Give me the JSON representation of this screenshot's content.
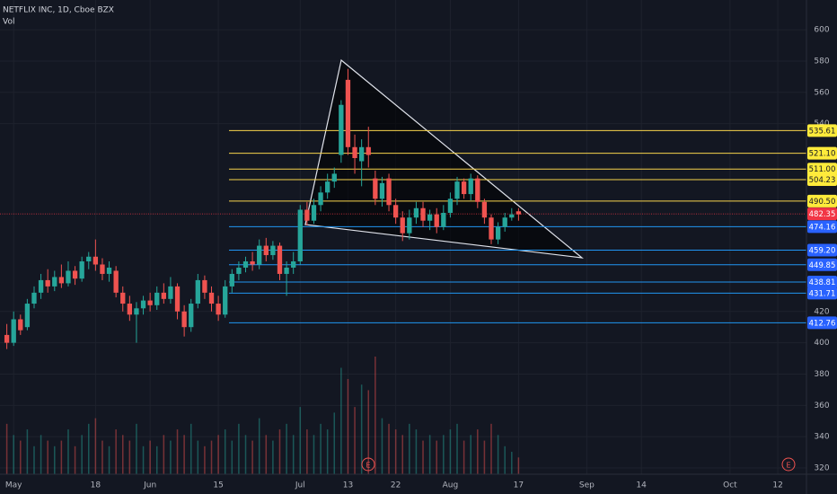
{
  "chart_data": {
    "type": "candlestick",
    "title": "NETFLIX INC, 1D, Cboe BZX",
    "subtitle": "Vol",
    "up_color": "#26a69a",
    "down_color": "#ef5350",
    "grid": true,
    "xlim": [
      -1,
      117.2
    ],
    "ylim": [
      316,
      619
    ],
    "yticks": [
      600,
      580,
      560,
      540,
      420,
      400,
      380,
      360,
      340,
      320
    ],
    "xticks": [
      {
        "value": 1,
        "label": "May"
      },
      {
        "value": 13,
        "label": "18"
      },
      {
        "value": 21,
        "label": "Jun"
      },
      {
        "value": 31,
        "label": "15"
      },
      {
        "value": 43,
        "label": "Jul"
      },
      {
        "value": 50,
        "label": "13"
      },
      {
        "value": 57,
        "label": "22"
      },
      {
        "value": 65,
        "label": "Aug"
      },
      {
        "value": 75,
        "label": "17"
      },
      {
        "value": 85,
        "label": "Sep"
      },
      {
        "value": 93,
        "label": "14"
      },
      {
        "value": 106,
        "label": "Oct"
      },
      {
        "value": 113,
        "label": "12"
      }
    ],
    "candles": [
      [
        405,
        412,
        396,
        400
      ],
      [
        400,
        420,
        398,
        415
      ],
      [
        415,
        418,
        405,
        408
      ],
      [
        410,
        428,
        408,
        425
      ],
      [
        425,
        436,
        422,
        432
      ],
      [
        432,
        444,
        428,
        440
      ],
      [
        440,
        447,
        432,
        436
      ],
      [
        436,
        446,
        433,
        442
      ],
      [
        442,
        450,
        435,
        438
      ],
      [
        438,
        452,
        436,
        446
      ],
      [
        446,
        449,
        437,
        441
      ],
      [
        441,
        455,
        439,
        452
      ],
      [
        452,
        458,
        447,
        455
      ],
      [
        455,
        466,
        446,
        450
      ],
      [
        450,
        454,
        440,
        444
      ],
      [
        444,
        452,
        439,
        448
      ],
      [
        446,
        449,
        429,
        432
      ],
      [
        432,
        436,
        420,
        425
      ],
      [
        425,
        430,
        414,
        418
      ],
      [
        418,
        426,
        400,
        422
      ],
      [
        422,
        430,
        418,
        427
      ],
      [
        427,
        432,
        420,
        424
      ],
      [
        424,
        436,
        421,
        432
      ],
      [
        432,
        438,
        425,
        428
      ],
      [
        428,
        442,
        425,
        436
      ],
      [
        436,
        438,
        415,
        420
      ],
      [
        420,
        424,
        404,
        410
      ],
      [
        410,
        428,
        407,
        425
      ],
      [
        425,
        444,
        422,
        440
      ],
      [
        440,
        443,
        428,
        432
      ],
      [
        432,
        436,
        420,
        425
      ],
      [
        425,
        430,
        414,
        418
      ],
      [
        418,
        440,
        416,
        436
      ],
      [
        436,
        447,
        432,
        444
      ],
      [
        444,
        452,
        440,
        448
      ],
      [
        448,
        455,
        445,
        452
      ],
      [
        452,
        458,
        446,
        450
      ],
      [
        450,
        466,
        447,
        462
      ],
      [
        462,
        467,
        452,
        456
      ],
      [
        456,
        465,
        453,
        462
      ],
      [
        462,
        464,
        440,
        444
      ],
      [
        444,
        452,
        430,
        448
      ],
      [
        448,
        458,
        444,
        452
      ],
      [
        452,
        488,
        450,
        485
      ],
      [
        485,
        490,
        475,
        478
      ],
      [
        478,
        492,
        476,
        488
      ],
      [
        488,
        500,
        484,
        496
      ],
      [
        496,
        508,
        492,
        503
      ],
      [
        503,
        512,
        499,
        508
      ],
      [
        520,
        555,
        515,
        552
      ],
      [
        568,
        575,
        520,
        525
      ],
      [
        525,
        533,
        508,
        518
      ],
      [
        516,
        530,
        500,
        525
      ],
      [
        525,
        538,
        512,
        520
      ],
      [
        505,
        510,
        488,
        492
      ],
      [
        492,
        506,
        487,
        502
      ],
      [
        505,
        508,
        484,
        488
      ],
      [
        488,
        492,
        476,
        480
      ],
      [
        480,
        484,
        465,
        470
      ],
      [
        470,
        485,
        466,
        480
      ],
      [
        480,
        490,
        476,
        486
      ],
      [
        486,
        490,
        474,
        478
      ],
      [
        478,
        485,
        472,
        482
      ],
      [
        482,
        486,
        470,
        474
      ],
      [
        474,
        488,
        472,
        483
      ],
      [
        483,
        496,
        480,
        492
      ],
      [
        492,
        506,
        488,
        503
      ],
      [
        503,
        505,
        492,
        495
      ],
      [
        495,
        508,
        491,
        505
      ],
      [
        505,
        507,
        486,
        490
      ],
      [
        490,
        492,
        476,
        480
      ],
      [
        480,
        482,
        463,
        466
      ],
      [
        466,
        477,
        463,
        474
      ],
      [
        474,
        483,
        471,
        480
      ],
      [
        480,
        486,
        478,
        482
      ],
      [
        484,
        486,
        478,
        482
      ]
    ],
    "volume": [
      9,
      7,
      6,
      8,
      5,
      7,
      6,
      5,
      6,
      8,
      5,
      7,
      9,
      10,
      6,
      5,
      8,
      7,
      6,
      9,
      5,
      6,
      5,
      7,
      6,
      8,
      7,
      9,
      6,
      5,
      6,
      7,
      8,
      6,
      9,
      7,
      6,
      10,
      7,
      6,
      8,
      9,
      7,
      12,
      8,
      7,
      9,
      8,
      11,
      19,
      17,
      12,
      16,
      15,
      21,
      10,
      9,
      8,
      7,
      9,
      8,
      6,
      7,
      6,
      7,
      8,
      9,
      6,
      7,
      8,
      6,
      9,
      7,
      5,
      4,
      3
    ],
    "last_price": {
      "price": 482.35,
      "color": "#f23645"
    },
    "levels": [
      {
        "price": 535.61,
        "color": "#f7d44c"
      },
      {
        "price": 521.1,
        "price_label": "521.10",
        "color": "#f7d44c"
      },
      {
        "price": 511,
        "price_label": "511.00",
        "color": "#f7d44c"
      },
      {
        "price": 504.23,
        "color": "#f7d44c"
      },
      {
        "price": 490.5,
        "price_label": "490.50",
        "color": "#f7d44c"
      },
      {
        "price": 474.16,
        "color": "#2196f3"
      },
      {
        "price": 459.2,
        "price_label": "459.20",
        "color": "#2196f3"
      },
      {
        "price": 449.85,
        "color": "#2196f3"
      },
      {
        "price": 438.81,
        "color": "#2196f3"
      },
      {
        "price": 431.71,
        "color": "#2196f3"
      },
      {
        "price": 412.76,
        "color": "#2196f3"
      }
    ],
    "event_labels": [
      "E",
      "E"
    ]
  }
}
